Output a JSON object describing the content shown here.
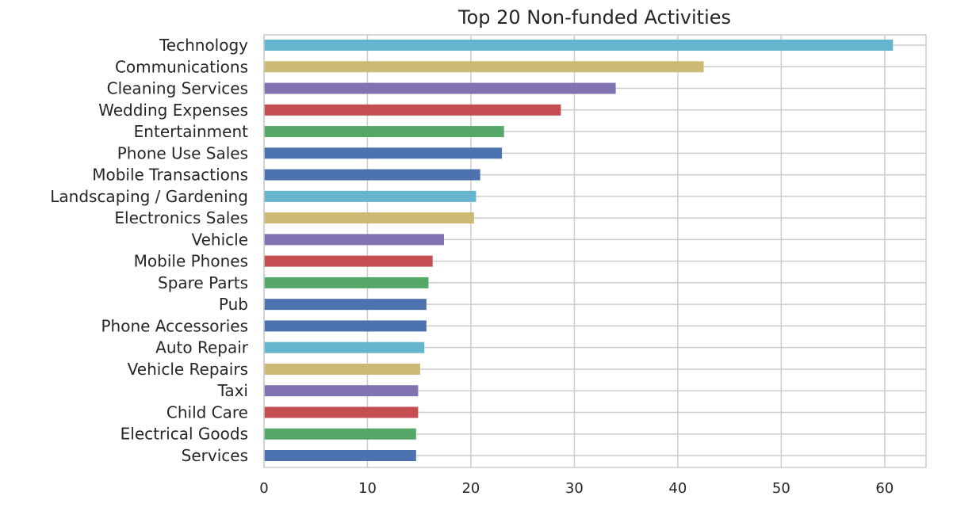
{
  "chart_data": {
    "type": "bar",
    "orientation": "horizontal",
    "title": "Top 20 Non-funded Activities",
    "xlabel": "",
    "ylabel": "",
    "xlim": [
      0,
      64
    ],
    "xticks": [
      0,
      10,
      20,
      30,
      40,
      50,
      60
    ],
    "grid": true,
    "legend": "none",
    "categories": [
      "Technology",
      "Communications",
      "Cleaning Services",
      "Wedding Expenses",
      "Entertainment",
      "Phone Use Sales",
      "Mobile Transactions",
      "Landscaping / Gardening",
      "Electronics Sales",
      "Vehicle",
      "Mobile Phones",
      "Spare Parts",
      "Pub",
      "Phone Accessories",
      "Auto Repair",
      "Vehicle Repairs",
      "Taxi",
      "Child Care",
      "Electrical Goods",
      "Services"
    ],
    "values": [
      60.8,
      42.5,
      34.0,
      28.7,
      23.2,
      23.0,
      20.9,
      20.5,
      20.3,
      17.4,
      16.3,
      15.9,
      15.7,
      15.7,
      15.5,
      15.1,
      14.9,
      14.9,
      14.7,
      14.7
    ],
    "colors": [
      "#64b5cd",
      "#ccb974",
      "#8172b2",
      "#c44e52",
      "#55a868",
      "#4c72b0",
      "#4c72b0",
      "#64b5cd",
      "#ccb974",
      "#8172b2",
      "#c44e52",
      "#55a868",
      "#4c72b0",
      "#4c72b0",
      "#64b5cd",
      "#ccb974",
      "#8172b2",
      "#c44e52",
      "#55a868",
      "#4c72b0"
    ]
  }
}
